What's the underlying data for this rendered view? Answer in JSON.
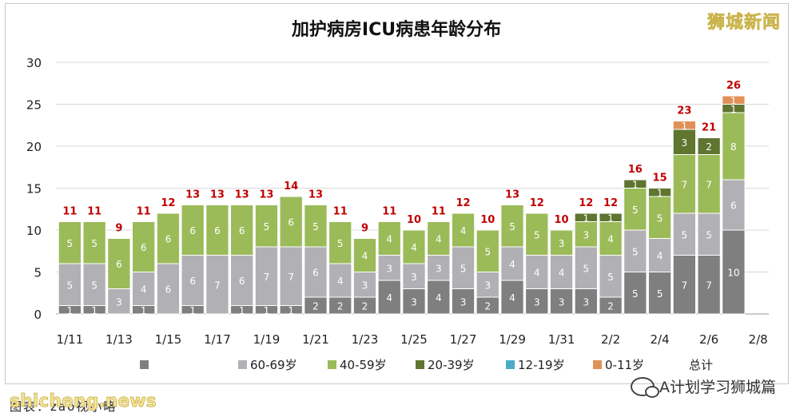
{
  "watermark_top": "狮城新闻",
  "site_watermark": "shicheng.news",
  "source_note": "图表：zao视小略",
  "wechat_account": "A计划学习狮城篇",
  "chart_data": {
    "type": "bar",
    "stacked": true,
    "title": "加护病房ICU病患年龄分布",
    "ylim": [
      0,
      30
    ],
    "yticks": [
      0,
      5,
      10,
      15,
      20,
      25,
      30
    ],
    "grid": true,
    "legend_position": "bottom",
    "categories": [
      "1/11",
      "1/12",
      "1/13",
      "1/14",
      "1/15",
      "1/16",
      "1/17",
      "1/18",
      "1/19",
      "1/20",
      "1/21",
      "1/22",
      "1/23",
      "1/24",
      "1/25",
      "1/26",
      "1/27",
      "1/28",
      "1/29",
      "1/30",
      "1/31",
      "2/1",
      "2/2",
      "2/3",
      "2/4",
      "2/5",
      "2/6",
      "2/7"
    ],
    "xtick_labels": [
      "1/11",
      "1/13",
      "1/15",
      "1/17",
      "1/19",
      "1/21",
      "1/23",
      "1/25",
      "1/27",
      "1/29",
      "1/31",
      "2/2",
      "2/4",
      "2/6",
      "2/8"
    ],
    "series": [
      {
        "name": "",
        "color": "#7f7f7f",
        "values": [
          1,
          1,
          0,
          1,
          0,
          1,
          0,
          1,
          1,
          1,
          2,
          2,
          2,
          4,
          3,
          4,
          3,
          2,
          4,
          3,
          3,
          3,
          2,
          5,
          5,
          7,
          7,
          10
        ]
      },
      {
        "name": "60-69岁",
        "color": "#b1b1b5",
        "values": [
          5,
          5,
          3,
          4,
          6,
          6,
          7,
          6,
          7,
          7,
          6,
          4,
          3,
          3,
          3,
          3,
          5,
          3,
          4,
          4,
          4,
          5,
          5,
          5,
          4,
          5,
          5,
          6
        ]
      },
      {
        "name": "40-59岁",
        "color": "#9bbb59",
        "values": [
          5,
          5,
          6,
          6,
          6,
          6,
          6,
          6,
          5,
          6,
          5,
          5,
          4,
          4,
          4,
          4,
          4,
          5,
          5,
          5,
          3,
          3,
          4,
          5,
          5,
          7,
          7,
          8
        ]
      },
      {
        "name": "20-39岁",
        "color": "#5f7530",
        "values": [
          0,
          0,
          0,
          0,
          0,
          0,
          0,
          0,
          0,
          0,
          0,
          0,
          0,
          0,
          0,
          0,
          0,
          0,
          0,
          0,
          0,
          1,
          1,
          1,
          1,
          3,
          2,
          1
        ]
      },
      {
        "name": "12-19岁",
        "color": "#4bacc6",
        "values": [
          0,
          0,
          0,
          0,
          0,
          0,
          0,
          0,
          0,
          0,
          0,
          0,
          0,
          0,
          0,
          0,
          0,
          0,
          0,
          0,
          0,
          0,
          0,
          0,
          0,
          0,
          0,
          0
        ]
      },
      {
        "name": "0-11岁",
        "color": "#e0915a",
        "values": [
          0,
          0,
          0,
          0,
          0,
          0,
          0,
          0,
          0,
          0,
          0,
          0,
          0,
          0,
          0,
          0,
          0,
          0,
          0,
          0,
          0,
          0,
          0,
          0,
          0,
          1,
          0,
          1
        ]
      }
    ],
    "totals_label": "总计",
    "totals_color": "#c00000",
    "totals": [
      11,
      11,
      9,
      11,
      12,
      13,
      13,
      13,
      13,
      14,
      13,
      11,
      9,
      11,
      10,
      11,
      12,
      10,
      13,
      12,
      10,
      12,
      12,
      16,
      15,
      23,
      21,
      26
    ]
  }
}
